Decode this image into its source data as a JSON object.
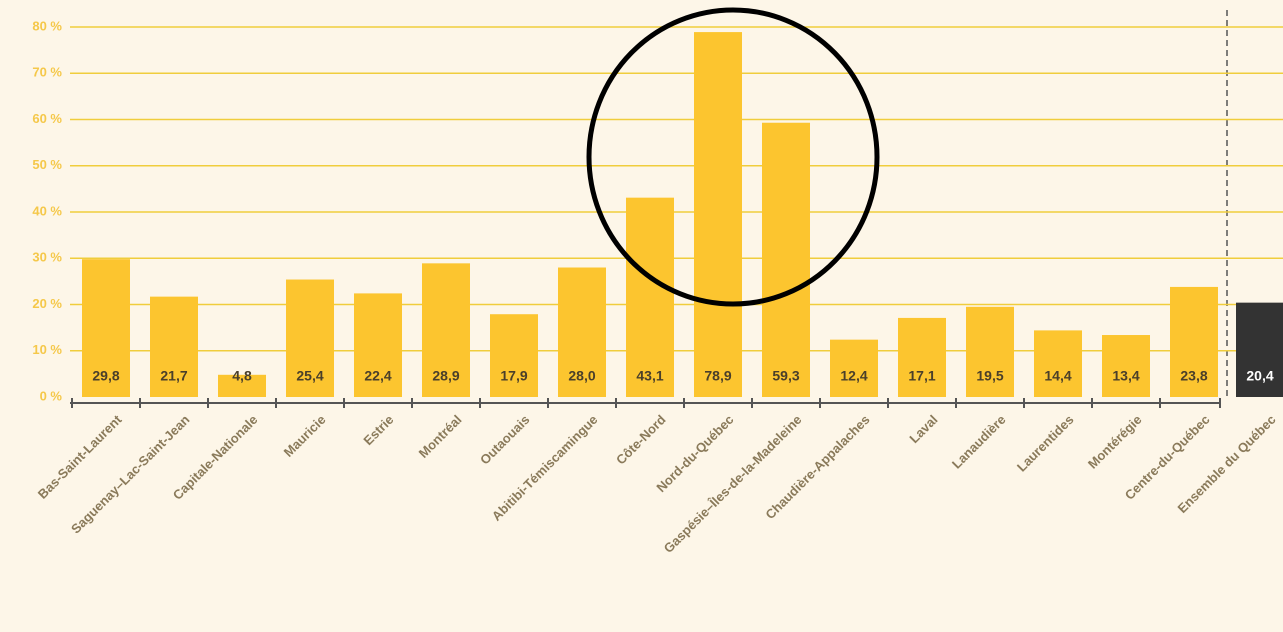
{
  "chart_data": {
    "type": "bar",
    "categories": [
      "Bas-Saint-Laurent",
      "Saguenay–Lac-Saint-Jean",
      "Capitale-Nationale",
      "Mauricie",
      "Estrie",
      "Montréal",
      "Outaouais",
      "Abitibi-Témiscamingue",
      "Côte-Nord",
      "Nord-du-Québec",
      "Gaspésie–Îles-de-la-Madeleine",
      "Chaudière-Appalaches",
      "Laval",
      "Lanaudière",
      "Laurentides",
      "Montérégie",
      "Centre-du-Québec",
      "Ensemble du Québec"
    ],
    "values": [
      29.8,
      21.7,
      4.8,
      25.4,
      22.4,
      28.9,
      17.9,
      28.0,
      43.1,
      78.9,
      59.3,
      12.4,
      17.1,
      19.5,
      14.4,
      13.4,
      23.8,
      20.4
    ],
    "value_labels": [
      "29,8",
      "21,7",
      "4,8",
      "25,4",
      "22,4",
      "28,9",
      "17,9",
      "28,0",
      "43,1",
      "78,9",
      "59,3",
      "12,4",
      "17,1",
      "19,5",
      "14,4",
      "13,4",
      "23,8",
      "20,4"
    ],
    "colors": [
      "#fcc52f",
      "#fcc52f",
      "#fcc52f",
      "#fcc52f",
      "#fcc52f",
      "#fcc52f",
      "#fcc52f",
      "#fcc52f",
      "#fcc52f",
      "#fcc52f",
      "#fcc52f",
      "#fcc52f",
      "#fcc52f",
      "#fcc52f",
      "#fcc52f",
      "#fcc52f",
      "#fcc52f",
      "#333333"
    ],
    "ylim": [
      0,
      80
    ],
    "yticks": [
      {
        "value": 0,
        "label": "0 %"
      },
      {
        "value": 10,
        "label": "10 %"
      },
      {
        "value": 20,
        "label": "20 %"
      },
      {
        "value": 30,
        "label": "30 %"
      },
      {
        "value": 40,
        "label": "40 %"
      },
      {
        "value": 50,
        "label": "50 %"
      },
      {
        "value": 60,
        "label": "60 %"
      },
      {
        "value": 70,
        "label": "70 %"
      },
      {
        "value": 80,
        "label": "80 %"
      }
    ],
    "grid": true
  }
}
